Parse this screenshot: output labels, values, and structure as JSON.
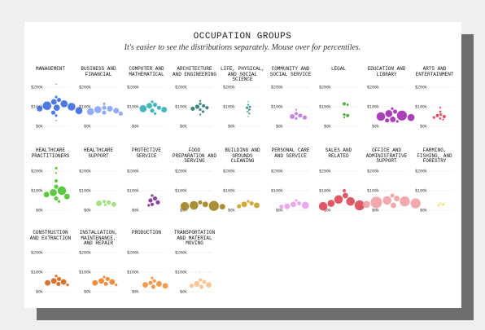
{
  "chart_data": {
    "type": "bubble",
    "title": "OCCUPATION GROUPS",
    "subtitle": "It's easier to see the distributions separately. Mouse over for percentiles.",
    "ylim": [
      0,
      250000
    ],
    "yticks": [
      {
        "value": 200000,
        "label": "$200k"
      },
      {
        "value": 100000,
        "label": "$100k"
      },
      {
        "value": 0,
        "label": "$0k"
      }
    ],
    "groups": [
      {
        "name": "MANAGEMENT",
        "color": "#2f62e0",
        "values": [
          215000,
          150000,
          135000,
          125000,
          115000,
          105000,
          100000,
          95000,
          90000,
          80000,
          70000,
          55000,
          30000
        ],
        "sizes": [
          1,
          4,
          9,
          16,
          25,
          36,
          30,
          20,
          16,
          25,
          9,
          4,
          1
        ]
      },
      {
        "name": "BUSINESS AND FINANCIAL",
        "color": "#7f9cf0",
        "values": [
          115000,
          95000,
          90000,
          85000,
          80000,
          75000,
          70000,
          65000
        ],
        "sizes": [
          4,
          9,
          16,
          25,
          16,
          25,
          9,
          9
        ]
      },
      {
        "name": "COMPUTER AND MATHEMATICAL",
        "color": "#22aab0",
        "values": [
          125000,
          110000,
          105000,
          95000,
          90000,
          85000,
          80000,
          65000
        ],
        "sizes": [
          4,
          9,
          16,
          9,
          25,
          16,
          9,
          4
        ]
      },
      {
        "name": "ARCHITECTURE AND ENGINEERING",
        "color": "#1e6e6a",
        "values": [
          130000,
          115000,
          105000,
          100000,
          95000,
          90000,
          85000,
          75000,
          60000
        ],
        "sizes": [
          2,
          4,
          6,
          9,
          6,
          9,
          4,
          4,
          2
        ]
      },
      {
        "name": "LIFE, PHYSICAL, AND SOCIAL SCIENCE",
        "color": "#2a8a7a",
        "values": [
          125000,
          110000,
          100000,
          95000,
          85000,
          75000,
          65000,
          50000
        ],
        "sizes": [
          1,
          2,
          3,
          4,
          3,
          2,
          2,
          1
        ]
      },
      {
        "name": "COMMUNITY AND SOCIAL SERVICE",
        "color": "#c070d8",
        "values": [
          85000,
          65000,
          55000,
          50000,
          45000,
          40000
        ],
        "sizes": [
          2,
          6,
          9,
          12,
          9,
          4
        ]
      },
      {
        "name": "LEGAL",
        "color": "#3c9a2a",
        "values": [
          115000,
          110000,
          60000,
          55000,
          45000
        ],
        "sizes": [
          6,
          3,
          4,
          6,
          2
        ]
      },
      {
        "name": "EDUCATION AND LIBRARY",
        "color": "#9a1fa8",
        "values": [
          90000,
          75000,
          65000,
          55000,
          50000,
          45000,
          35000,
          30000,
          25000
        ],
        "sizes": [
          4,
          9,
          25,
          49,
          36,
          25,
          16,
          9,
          4
        ]
      },
      {
        "name": "ARTS AND ENTERTAINMENT",
        "color": "#d8344e",
        "values": [
          95000,
          75000,
          60000,
          55000,
          50000,
          45000,
          40000,
          35000
        ],
        "sizes": [
          2,
          3,
          4,
          6,
          6,
          4,
          3,
          2
        ]
      },
      {
        "name": "HEALTHCARE PRACTITIONERS",
        "color": "#3fbf1f",
        "values": [
          215000,
          190000,
          150000,
          120000,
          100000,
          90000,
          80000,
          70000,
          60000,
          45000
        ],
        "sizes": [
          4,
          2,
          6,
          9,
          36,
          25,
          16,
          16,
          9,
          4
        ]
      },
      {
        "name": "HEALTHCARE SUPPORT",
        "color": "#8fdc6c",
        "values": [
          45000,
          40000,
          35000,
          30000,
          28000
        ],
        "sizes": [
          6,
          9,
          16,
          12,
          4
        ]
      },
      {
        "name": "PROTECTIVE SERVICE",
        "color": "#781e8c",
        "values": [
          75000,
          60000,
          50000,
          40000,
          30000,
          25000
        ],
        "sizes": [
          4,
          9,
          9,
          9,
          6,
          4
        ]
      },
      {
        "name": "FOOD PREPARATION AND SERVING",
        "color": "#9a7a12",
        "values": [
          40000,
          30000,
          25000,
          22000,
          20000,
          18000
        ],
        "sizes": [
          9,
          16,
          36,
          49,
          36,
          16
        ]
      },
      {
        "name": "BUILDING AND GROUNDS CLEANING",
        "color": "#c49a14",
        "values": [
          45000,
          35000,
          30000,
          25000,
          20000
        ],
        "sizes": [
          4,
          9,
          16,
          16,
          9
        ]
      },
      {
        "name": "PERSONAL CARE AND SERVICE",
        "color": "#e69ae8",
        "values": [
          50000,
          35000,
          30000,
          25000,
          20000,
          18000
        ],
        "sizes": [
          4,
          9,
          16,
          25,
          16,
          9
        ]
      },
      {
        "name": "SALES AND RELATED",
        "color": "#d93b4c",
        "values": [
          100000,
          75000,
          55000,
          45000,
          35000,
          25000,
          20000
        ],
        "sizes": [
          6,
          16,
          36,
          36,
          25,
          49,
          36
        ]
      },
      {
        "name": "OFFICE AND ADMINISTRATIVE SUPPORT",
        "color": "#f09aa0",
        "values": [
          75000,
          60000,
          50000,
          45000,
          40000,
          35000,
          30000,
          25000
        ],
        "sizes": [
          9,
          16,
          36,
          49,
          64,
          49,
          25,
          16
        ]
      },
      {
        "name": "FARMING, FISHING, AND FORESTRY",
        "color": "#f5d562",
        "values": [
          35000,
          30000,
          25000
        ],
        "sizes": [
          2,
          4,
          3
        ]
      },
      {
        "name": "CONSTRUCTION AND EXTRACTION",
        "color": "#cc5a0e",
        "values": [
          80000,
          65000,
          55000,
          50000,
          45000,
          40000,
          35000
        ],
        "sizes": [
          4,
          9,
          16,
          16,
          16,
          9,
          4
        ]
      },
      {
        "name": "INSTALLATION, MAINTENANCE, AND REPAIR",
        "color": "#ea7a1e",
        "values": [
          75000,
          65000,
          55000,
          50000,
          45000,
          40000,
          35000
        ],
        "sizes": [
          4,
          9,
          16,
          16,
          16,
          9,
          4
        ]
      },
      {
        "name": "PRODUCTION",
        "color": "#f08a30",
        "values": [
          70000,
          55000,
          45000,
          40000,
          35000,
          30000,
          25000
        ],
        "sizes": [
          4,
          6,
          9,
          16,
          16,
          16,
          9
        ]
      },
      {
        "name": "TRANSPORTATION AND MATERIAL MOVING",
        "color": "#f8bc86",
        "values": [
          100000,
          60000,
          50000,
          40000,
          35000,
          30000,
          25000
        ],
        "sizes": [
          1,
          6,
          9,
          16,
          16,
          9,
          9
        ]
      }
    ]
  }
}
